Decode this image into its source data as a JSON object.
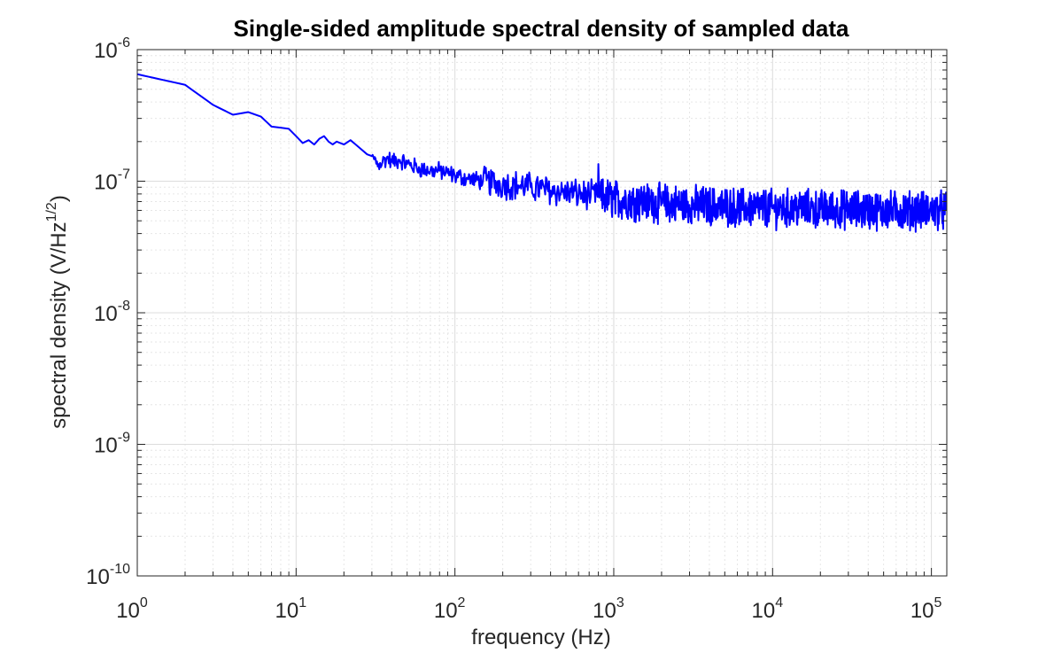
{
  "chart_data": {
    "type": "line",
    "title": "Single-sided amplitude spectral density of sampled data",
    "xlabel": "frequency (Hz)",
    "ylabel": {
      "text": "spectral density (V/Hz",
      "superscript": "1/2",
      "suffix": ")"
    },
    "xscale": "log",
    "yscale": "log",
    "xlim": [
      1,
      125000
    ],
    "ylim": [
      1e-10,
      1e-06
    ],
    "grid": true,
    "minor_grid": true,
    "legend": "none",
    "x_ticks": [
      {
        "base": "10",
        "exp": "0"
      },
      {
        "base": "10",
        "exp": "1"
      },
      {
        "base": "10",
        "exp": "2"
      },
      {
        "base": "10",
        "exp": "3"
      },
      {
        "base": "10",
        "exp": "4"
      },
      {
        "base": "10",
        "exp": "5"
      }
    ],
    "y_ticks": [
      {
        "base": "10",
        "exp": "-10"
      },
      {
        "base": "10",
        "exp": "-9"
      },
      {
        "base": "10",
        "exp": "-8"
      },
      {
        "base": "10",
        "exp": "-7"
      },
      {
        "base": "10",
        "exp": "-6"
      }
    ],
    "line_color": "#0000ff",
    "series": [
      {
        "x": [
          1,
          2,
          3,
          4,
          5,
          6,
          7,
          8,
          9,
          10,
          11,
          12,
          13,
          14,
          15,
          16,
          17,
          18,
          20,
          22,
          25,
          28,
          30,
          33,
          35,
          38,
          40,
          45,
          50,
          60,
          70,
          80,
          90,
          100,
          120,
          150,
          200,
          250,
          300,
          350,
          400,
          500,
          600,
          700,
          790,
          800,
          810,
          900,
          1000,
          1500,
          2000,
          3000,
          5000,
          7000,
          10000,
          15000,
          20000,
          30000,
          50000,
          70000,
          100000,
          125000
        ],
        "y": [
          6.5e-07,
          5.4e-07,
          3.8e-07,
          3.2e-07,
          3.35e-07,
          3.1e-07,
          2.6e-07,
          2.55e-07,
          2.5e-07,
          2.2e-07,
          1.95e-07,
          2.05e-07,
          1.9e-07,
          2.1e-07,
          2.2e-07,
          2e-07,
          1.9e-07,
          2e-07,
          1.9e-07,
          2.05e-07,
          1.8e-07,
          1.6e-07,
          1.55e-07,
          1.35e-07,
          1.4e-07,
          1.5e-07,
          1.4e-07,
          1.45e-07,
          1.35e-07,
          1.25e-07,
          1.2e-07,
          1.2e-07,
          1.15e-07,
          1.1e-07,
          1.05e-07,
          1e-07,
          9.5e-08,
          9.3e-08,
          9e-08,
          8.8e-08,
          8.5e-08,
          8.2e-08,
          8e-08,
          7.8e-08,
          7.6e-08,
          1.35e-07,
          7.5e-08,
          7.5e-08,
          7.3e-08,
          7e-08,
          6.8e-08,
          6.6e-08,
          6.4e-08,
          6.3e-08,
          6.2e-08,
          6.2e-08,
          6.1e-08,
          6.1e-08,
          6e-08,
          6e-08,
          6e-08,
          6e-08
        ]
      }
    ]
  }
}
